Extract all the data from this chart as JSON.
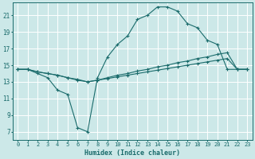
{
  "xlabel": "Humidex (Indice chaleur)",
  "bg_color": "#cce8e8",
  "line_color": "#1a6b6b",
  "grid_color": "#ffffff",
  "xlim": [
    -0.5,
    23.5
  ],
  "ylim": [
    6.0,
    22.5
  ],
  "xticks": [
    0,
    1,
    2,
    3,
    4,
    5,
    6,
    7,
    8,
    9,
    10,
    11,
    12,
    13,
    14,
    15,
    16,
    17,
    18,
    19,
    20,
    21,
    22,
    23
  ],
  "yticks": [
    7,
    9,
    11,
    13,
    15,
    17,
    19,
    21
  ],
  "line_upper_x": [
    0,
    1,
    2,
    3,
    4,
    5,
    6,
    7,
    8,
    9,
    10,
    11,
    12,
    13,
    14,
    15,
    16,
    17,
    18,
    19,
    20,
    21,
    22,
    23
  ],
  "line_upper_y": [
    14.5,
    14.5,
    14.0,
    13.5,
    12.0,
    11.5,
    7.5,
    7.0,
    13.5,
    16.0,
    17.5,
    18.5,
    20.5,
    21.0,
    22.0,
    22.0,
    21.5,
    20.0,
    19.5,
    18.0,
    17.5,
    14.5,
    14.5,
    14.5
  ],
  "line_middle_x": [
    0,
    1,
    2,
    3,
    4,
    5,
    6,
    7,
    8,
    9,
    10,
    11,
    12,
    13,
    14,
    15,
    16,
    17,
    18,
    19,
    20,
    21,
    22,
    23
  ],
  "line_middle_y": [
    14.5,
    14.5,
    14.2,
    14.0,
    13.8,
    13.5,
    13.3,
    13.0,
    13.2,
    13.5,
    13.8,
    14.0,
    14.3,
    14.5,
    14.8,
    15.0,
    15.3,
    15.5,
    15.8,
    16.0,
    16.3,
    16.5,
    14.5,
    14.5
  ],
  "line_lower_x": [
    0,
    1,
    2,
    3,
    4,
    5,
    6,
    7,
    8,
    9,
    10,
    11,
    12,
    13,
    14,
    15,
    16,
    17,
    18,
    19,
    20,
    21,
    22,
    23
  ],
  "line_lower_y": [
    14.5,
    14.5,
    14.2,
    14.0,
    13.8,
    13.5,
    13.2,
    13.0,
    13.2,
    13.4,
    13.6,
    13.8,
    14.0,
    14.2,
    14.4,
    14.6,
    14.8,
    15.0,
    15.2,
    15.4,
    15.6,
    15.8,
    14.5,
    14.5
  ]
}
